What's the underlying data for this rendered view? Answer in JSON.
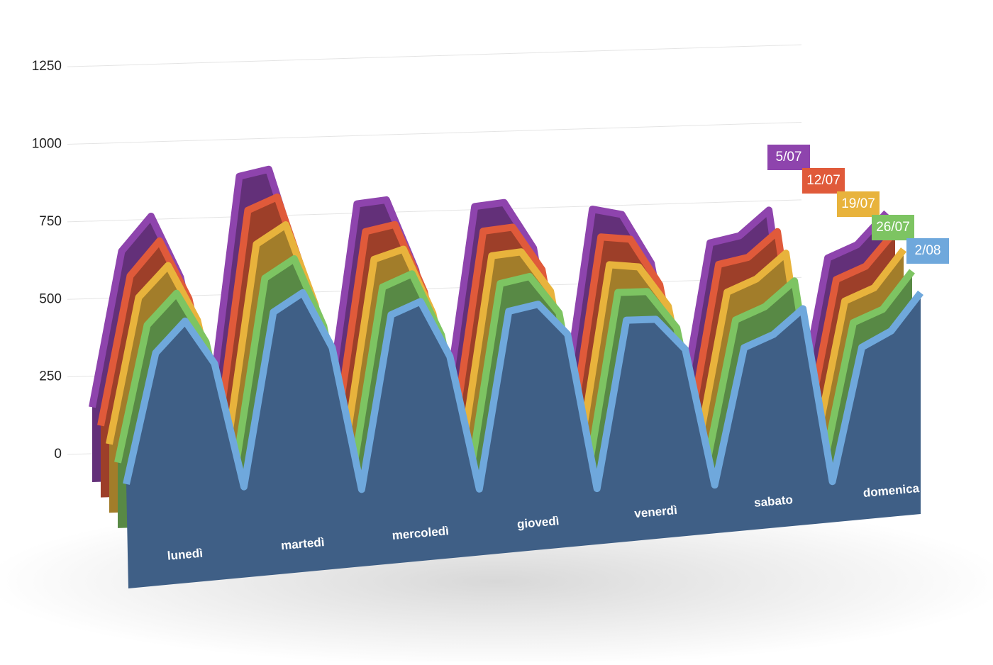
{
  "chart_data": {
    "type": "area",
    "categories": [
      null,
      null,
      "lunedì",
      null,
      null,
      null,
      "martedì",
      null,
      null,
      null,
      "mercoledì",
      null,
      null,
      null,
      "giovedì",
      null,
      null,
      null,
      "venerdì",
      null,
      null,
      null,
      "sabato",
      null,
      null,
      null,
      "domenica",
      null
    ],
    "series": [
      {
        "name": "5/07",
        "color": "#8e44ad",
        "values": [
          150,
          650,
          760,
          560,
          120,
          880,
          900,
          600,
          100,
          780,
          790,
          560,
          90,
          760,
          770,
          620,
          80,
          740,
          720,
          560,
          70,
          620,
          640,
          720,
          60,
          560,
          600,
          700
        ]
      },
      {
        "name": "12/07",
        "color": "#e05a3a",
        "values": [
          140,
          620,
          730,
          540,
          110,
          820,
          860,
          580,
          90,
          740,
          760,
          540,
          80,
          730,
          740,
          600,
          70,
          700,
          690,
          540,
          60,
          600,
          620,
          700,
          55,
          540,
          580,
          690
        ]
      },
      {
        "name": "19/07",
        "color": "#e8b33c",
        "values": [
          130,
          600,
          700,
          520,
          100,
          760,
          820,
          560,
          80,
          700,
          730,
          520,
          70,
          700,
          710,
          580,
          60,
          660,
          650,
          520,
          55,
          560,
          600,
          680,
          50,
          520,
          560,
          680
        ]
      },
      {
        "name": "26/07",
        "color": "#7dc462",
        "values": [
          120,
          560,
          660,
          500,
          90,
          700,
          760,
          540,
          70,
          660,
          700,
          500,
          60,
          660,
          680,
          560,
          50,
          620,
          620,
          500,
          50,
          520,
          560,
          640,
          45,
          500,
          540,
          660
        ]
      },
      {
        "name": "2/08",
        "color": "#6fa8dc",
        "values": [
          100,
          520,
          620,
          480,
          80,
          640,
          700,
          520,
          60,
          620,
          660,
          480,
          50,
          620,
          640,
          540,
          40,
          580,
          580,
          480,
          40,
          480,
          520,
          600,
          40,
          470,
          520,
          640
        ]
      }
    ],
    "ylim": [
      0,
      1250
    ],
    "yticks": [
      0,
      250,
      500,
      750,
      1000,
      1250
    ],
    "grid": true
  }
}
